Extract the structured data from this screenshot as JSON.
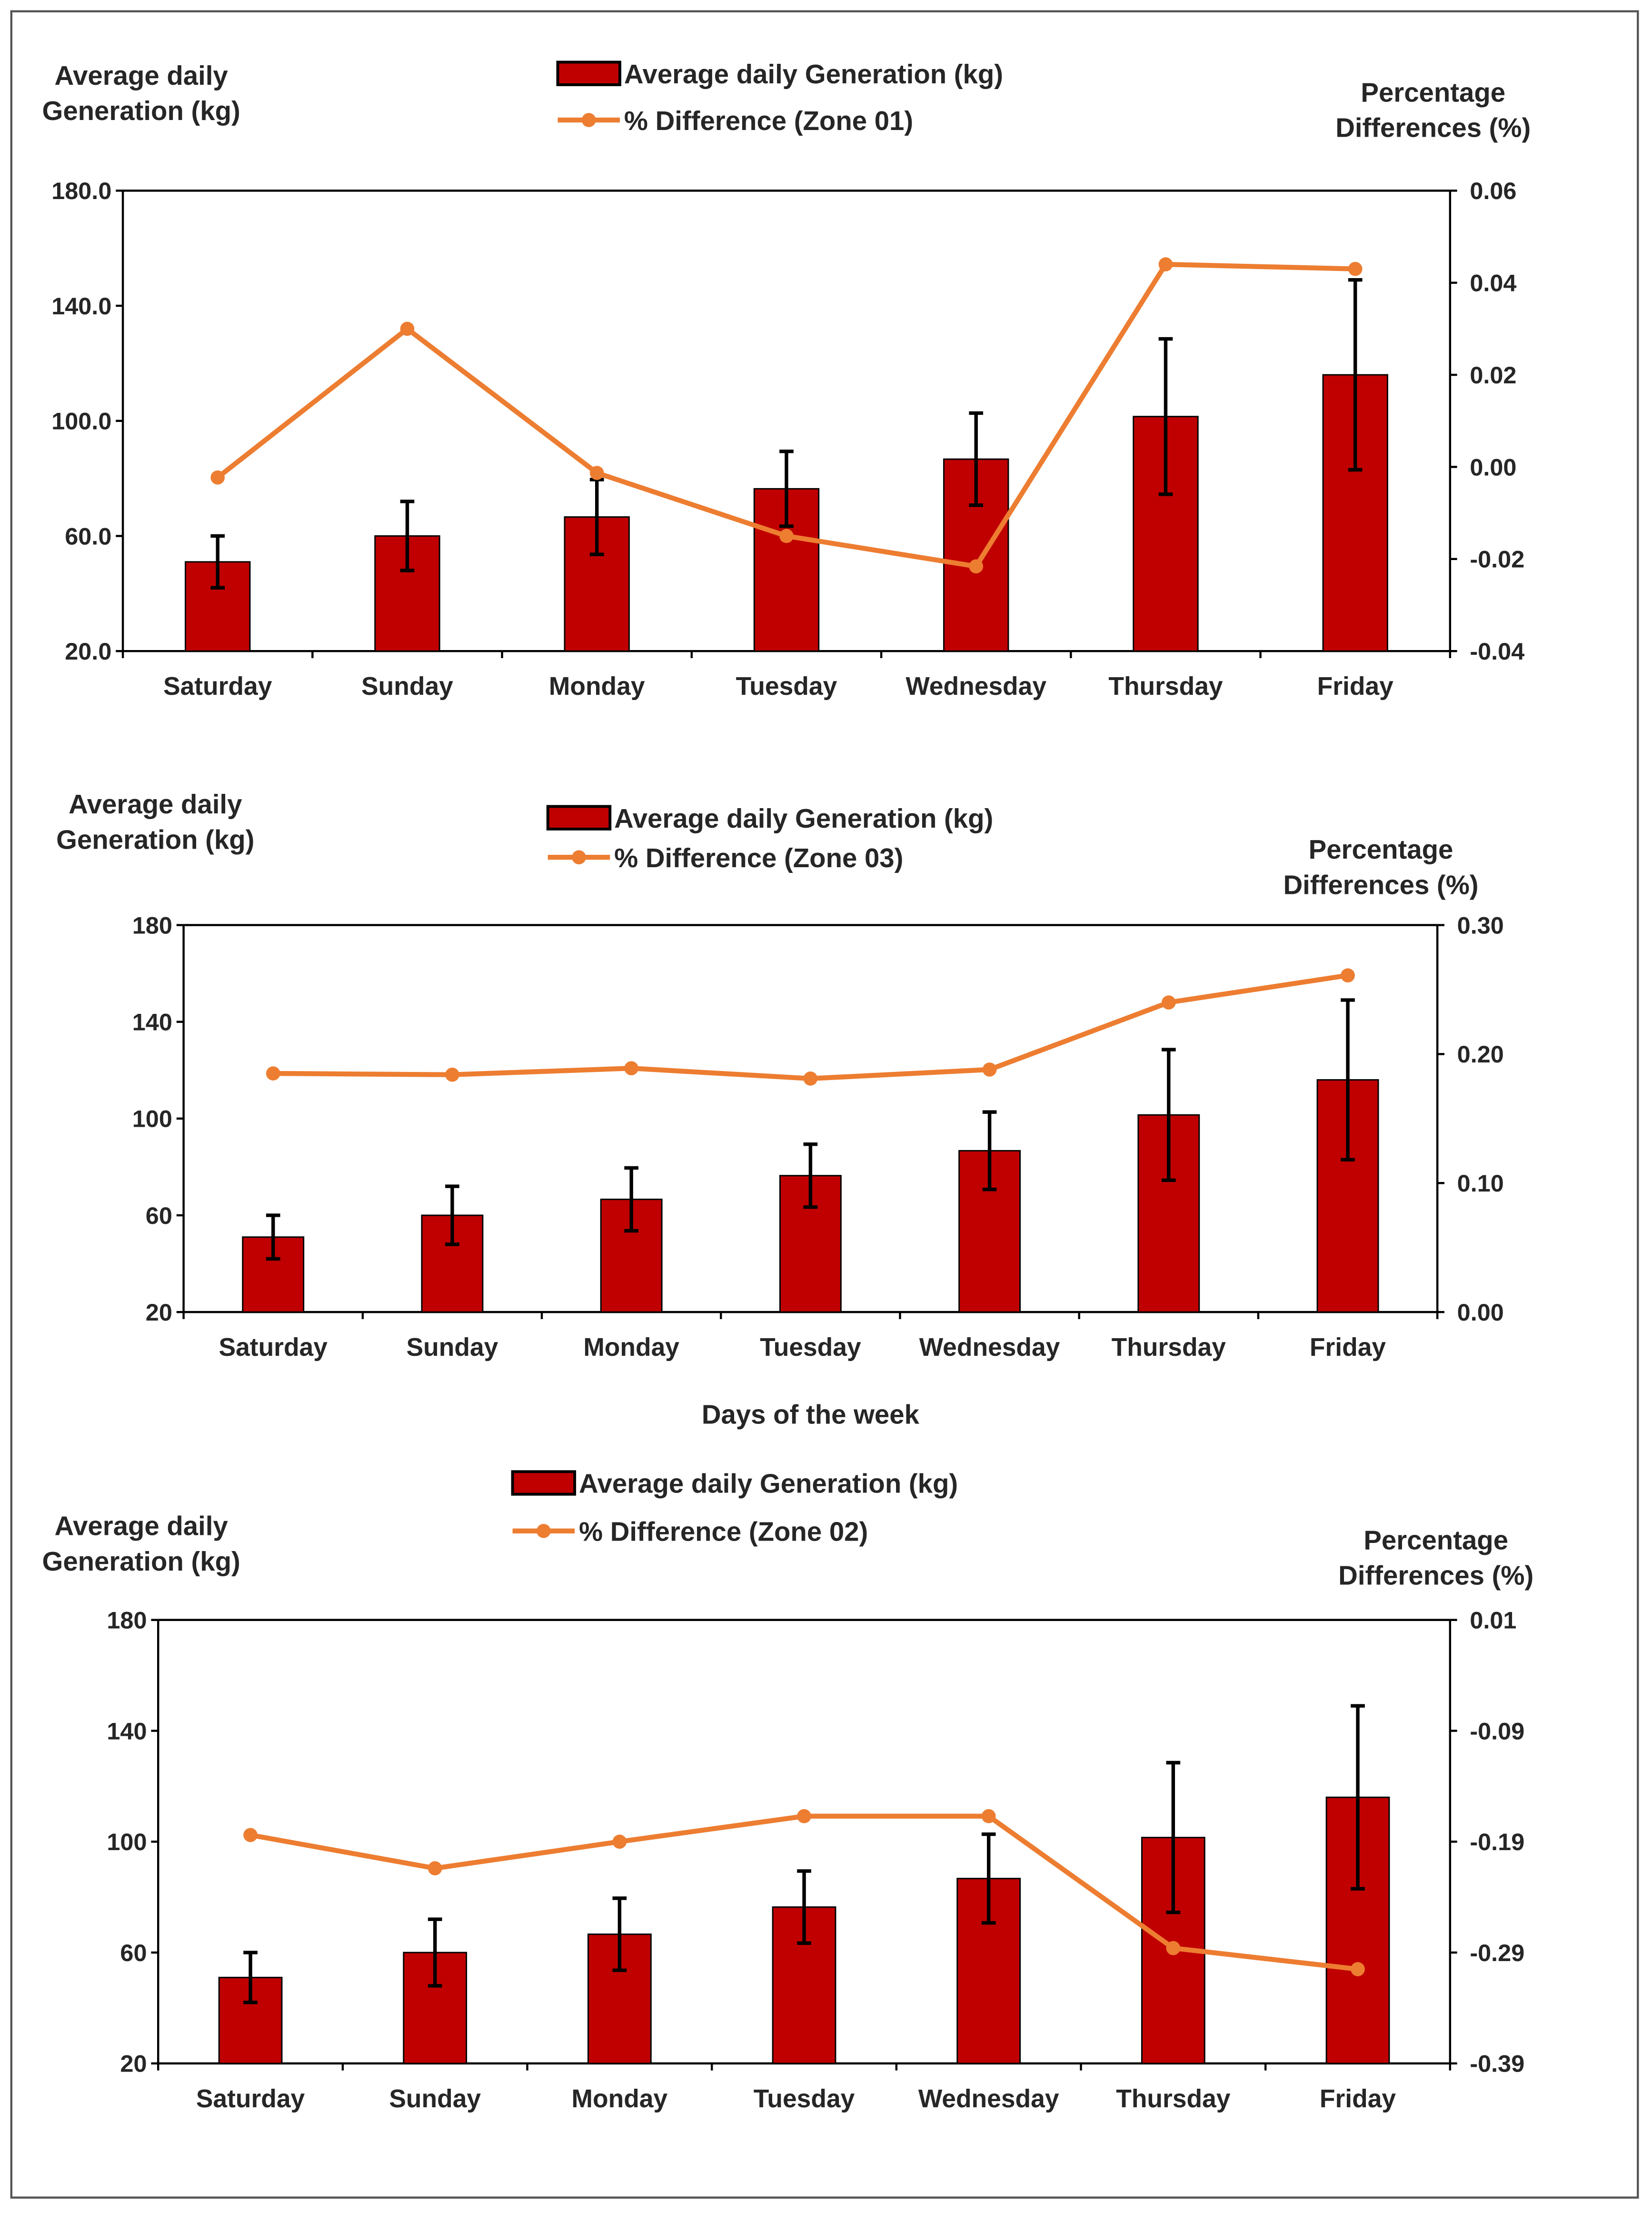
{
  "chart_data": [
    {
      "type": "bar+line",
      "categories": [
        "Saturday",
        "Sunday",
        "Monday",
        "Tuesday",
        "Wednesday",
        "Thursday",
        "Friday"
      ],
      "bar_series": {
        "name": "Average daily Generation (kg)",
        "values": [
          51,
          60,
          66.6,
          76.4,
          86.7,
          101.5,
          116
        ],
        "errors": [
          9,
          12,
          13,
          13,
          16,
          27,
          33
        ]
      },
      "line_series": {
        "name": "% Difference (Zone 01)",
        "values": [
          -0.0023,
          0.03,
          -0.0013,
          -0.015,
          -0.0216,
          0.044,
          0.043
        ]
      },
      "ylabel_left": [
        "Average daily",
        "Generation (kg)"
      ],
      "ylabel_right": [
        "Percentage",
        "Differences (%)"
      ],
      "xlabel": "",
      "ylim_left": [
        20,
        180
      ],
      "ylim_right": [
        -0.04,
        0.06
      ],
      "left_ticks": [
        "20.0",
        "60.0",
        "100.0",
        "140.0",
        "180.0"
      ],
      "right_ticks": [
        "-0.04",
        "-0.02",
        "0.00",
        "0.02",
        "0.04",
        "0.06"
      ],
      "legend": "top-center"
    },
    {
      "type": "bar+line",
      "categories": [
        "Saturday",
        "Sunday",
        "Monday",
        "Tuesday",
        "Wednesday",
        "Thursday",
        "Friday"
      ],
      "bar_series": {
        "name": "Average daily Generation (kg)",
        "values": [
          51,
          60,
          66.6,
          76.4,
          86.7,
          101.5,
          116
        ],
        "errors": [
          9,
          12,
          13,
          13,
          16,
          27,
          33
        ]
      },
      "line_series": {
        "name": "% Difference (Zone 03)",
        "values": [
          0.185,
          0.184,
          0.189,
          0.181,
          0.188,
          0.24,
          0.261
        ]
      },
      "ylabel_left": [
        "Average daily",
        "Generation (kg)"
      ],
      "ylabel_right": [
        "Percentage",
        "Differences (%)"
      ],
      "xlabel": "Days of the week",
      "ylim_left": [
        20,
        180
      ],
      "ylim_right": [
        0,
        0.3
      ],
      "left_ticks": [
        "20",
        "60",
        "100",
        "140",
        "180"
      ],
      "right_ticks": [
        "0.00",
        "0.10",
        "0.20",
        "0.30"
      ],
      "legend": "top-center"
    },
    {
      "type": "bar+line",
      "categories": [
        "Saturday",
        "Sunday",
        "Monday",
        "Tuesday",
        "Wednesday",
        "Thursday",
        "Friday"
      ],
      "bar_series": {
        "name": "Average daily Generation (kg)",
        "values": [
          51,
          60,
          66.6,
          76.4,
          86.7,
          101.5,
          116
        ],
        "errors": [
          9,
          12,
          13,
          13,
          16,
          27,
          33
        ]
      },
      "line_series": {
        "name": "% Difference (Zone 02)",
        "values": [
          -0.184,
          -0.214,
          -0.19,
          -0.167,
          -0.167,
          -0.286,
          -0.305
        ]
      },
      "ylabel_left": [
        "Average daily",
        "Generation (kg)"
      ],
      "ylabel_right": [
        "Percentage",
        "Differences (%)"
      ],
      "xlabel": "",
      "ylim_left": [
        20,
        180
      ],
      "ylim_right": [
        -0.39,
        0.01
      ],
      "left_ticks": [
        "20",
        "60",
        "100",
        "140",
        "180"
      ],
      "right_ticks": [
        "-0.39",
        "-0.29",
        "-0.19",
        "-0.09",
        "0.01"
      ],
      "legend": "top-center"
    }
  ],
  "colors": {
    "bar": "#C00000",
    "line": "#ED7D31",
    "axis": "#000000"
  }
}
